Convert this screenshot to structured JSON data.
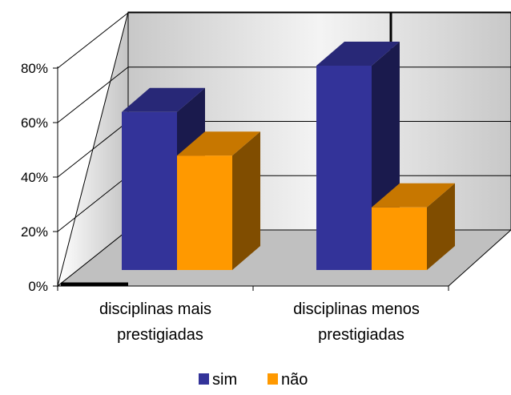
{
  "chart_data": {
    "type": "bar",
    "categories": [
      "disciplinas mais prestigiadas",
      "disciplinas menos prestigiadas"
    ],
    "category_lines": [
      [
        "disciplinas mais",
        "prestigiadas"
      ],
      [
        "disciplinas menos",
        "prestigiadas"
      ]
    ],
    "series": [
      {
        "name": "sim",
        "values": [
          58,
          75
        ],
        "color": "#333399"
      },
      {
        "name": "não",
        "values": [
          42,
          23
        ],
        "color": "#FF9900"
      }
    ],
    "ylim": [
      0,
      80
    ],
    "yticks": [
      0,
      20,
      40,
      60,
      80
    ],
    "ytick_labels": [
      "0%",
      "20%",
      "40%",
      "60%",
      "80%"
    ],
    "grid": true,
    "legend": "bottom",
    "style": "3d"
  }
}
